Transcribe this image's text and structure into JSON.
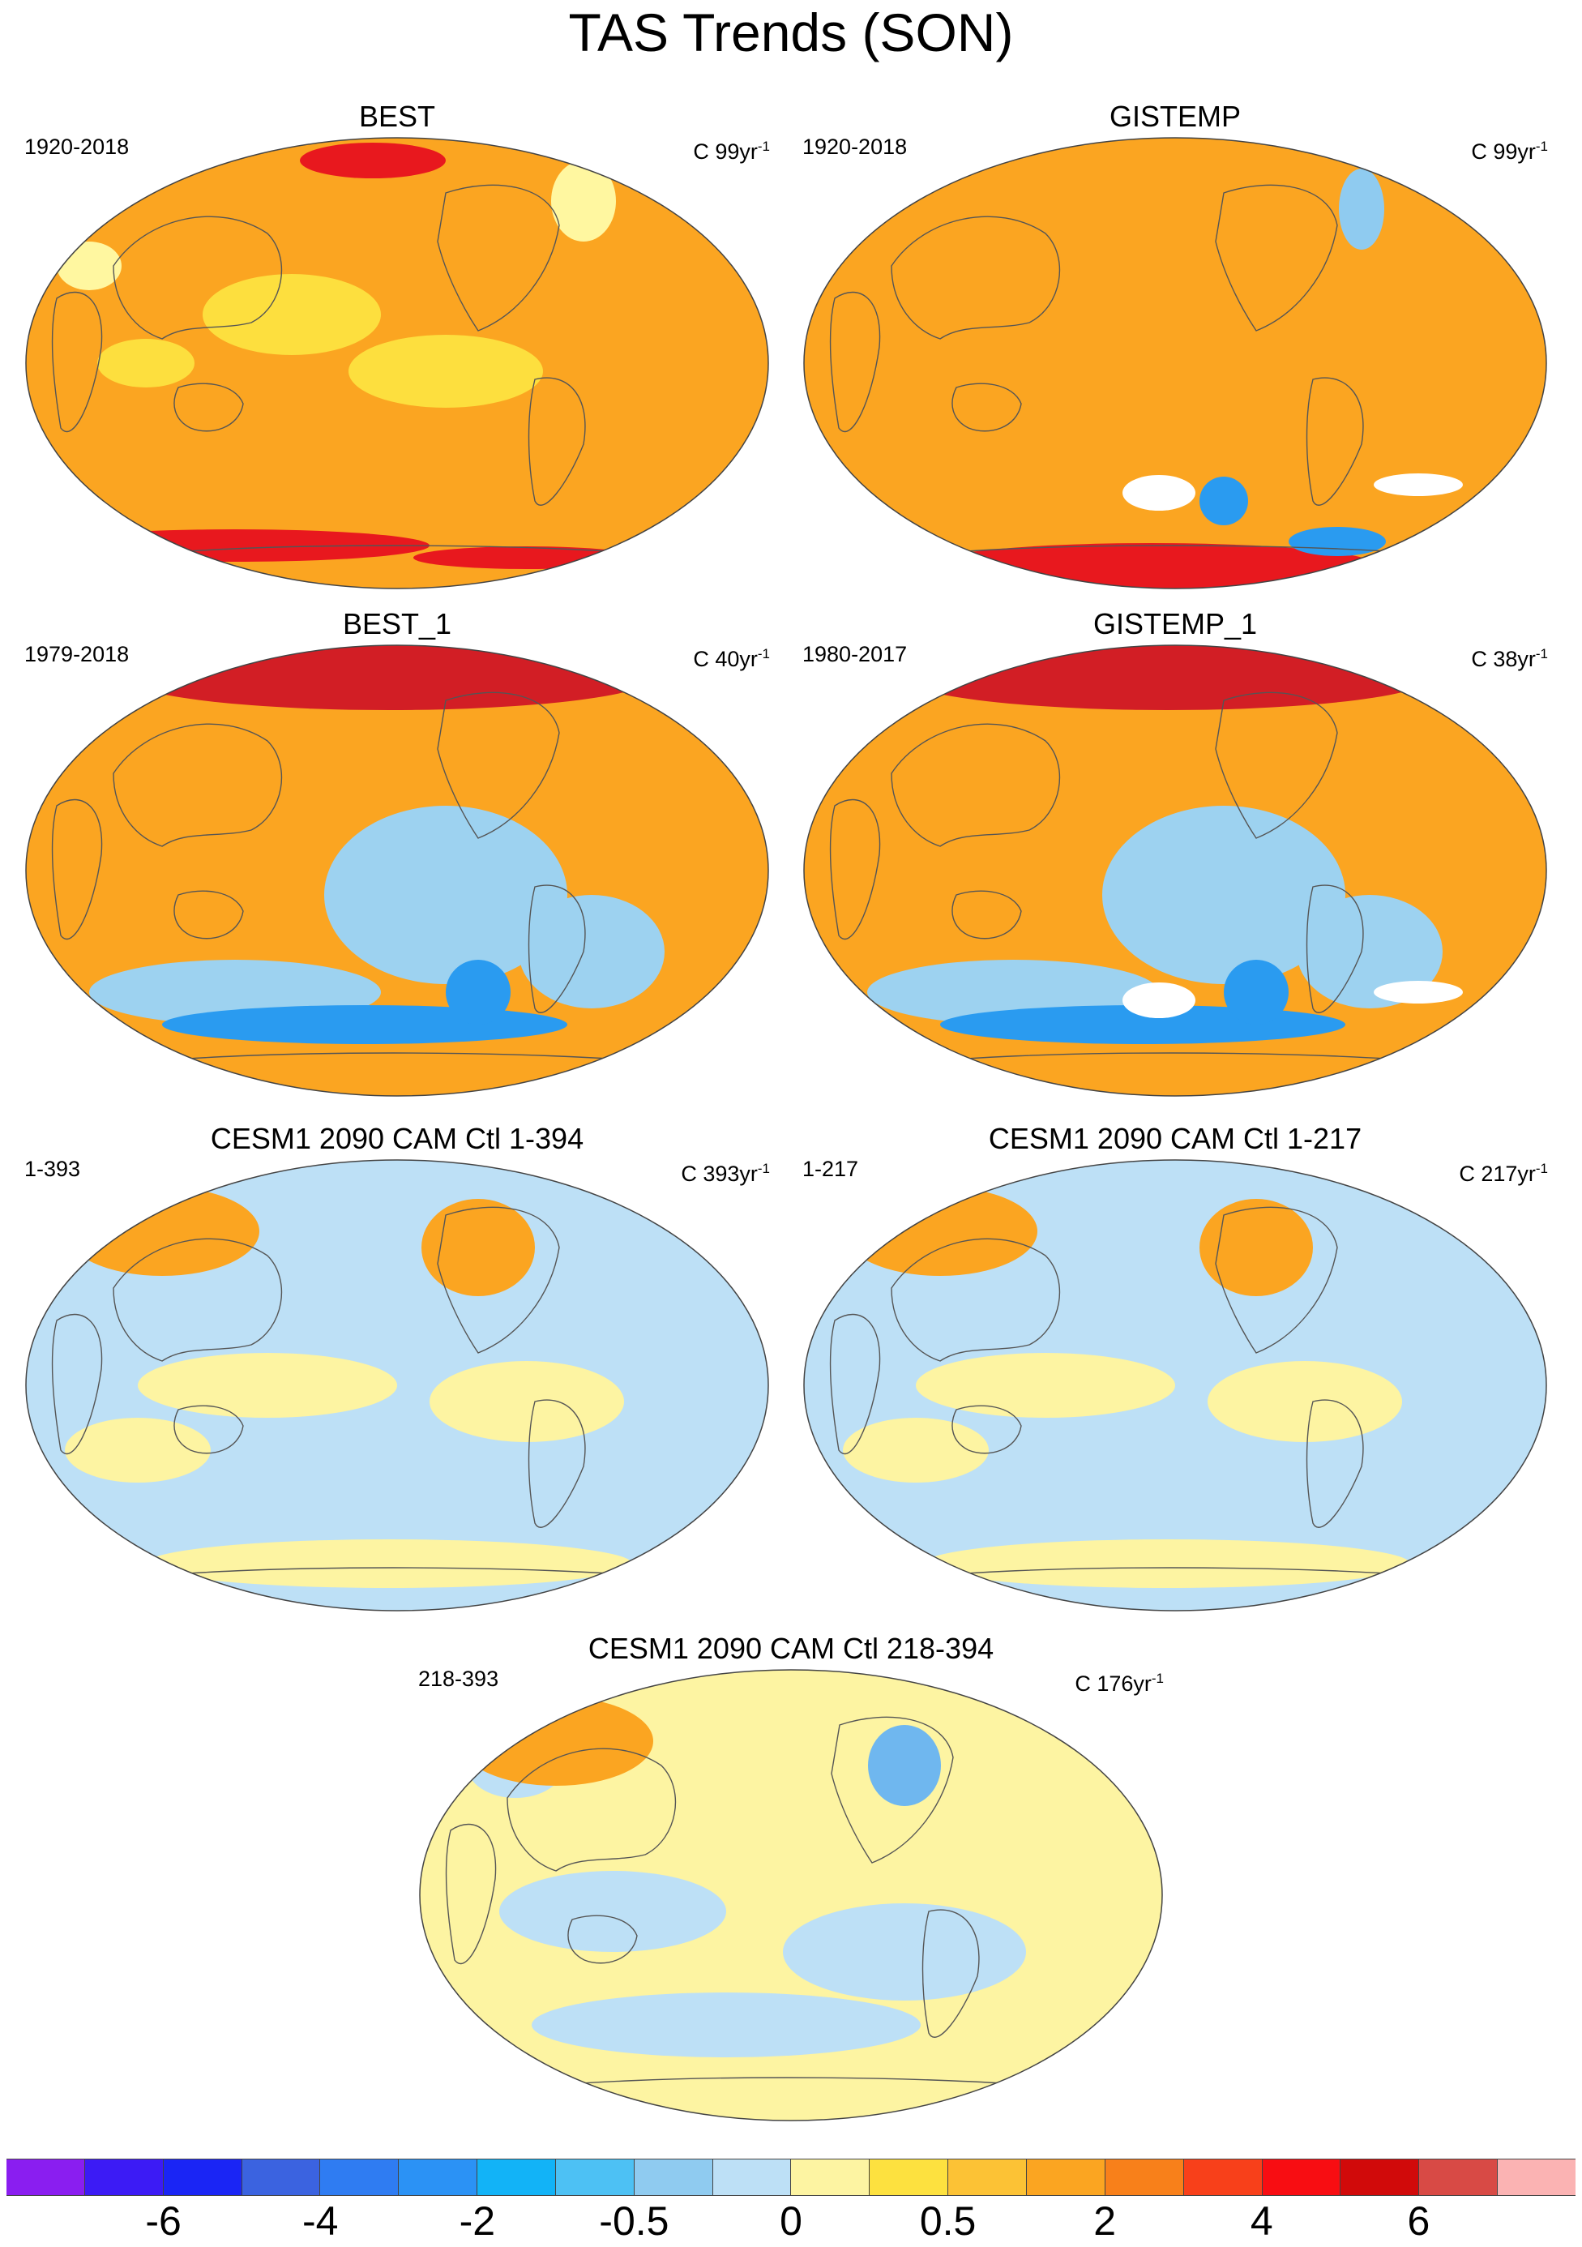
{
  "title": "TAS Trends (SON)",
  "panels": [
    {
      "title": "BEST",
      "period": "1920-2018",
      "units_prefix": "C 99yr",
      "units_exp": "-1",
      "map": {
        "base": "#fba521",
        "features": [
          {
            "name": "arctic-warm-spot",
            "color": "#e8181e"
          },
          {
            "name": "southern-ocean-band",
            "color": "#e8181e"
          },
          {
            "name": "north-atlantic-pale",
            "color": "#fff7a0"
          },
          {
            "name": "tropical-pacific-yellow",
            "color": "#fddf3e"
          }
        ]
      }
    },
    {
      "title": "GISTEMP",
      "period": "1920-2018",
      "units_prefix": "C 99yr",
      "units_exp": "-1",
      "map": {
        "base": "#fba521",
        "features": [
          {
            "name": "antarctic-red",
            "color": "#e8181e"
          },
          {
            "name": "greenland-cool",
            "color": "#8fcbf0"
          },
          {
            "name": "weddell-blue",
            "color": "#2a9bf0"
          },
          {
            "name": "missing-data",
            "color": "#ffffff"
          }
        ]
      }
    },
    {
      "title": "BEST_1",
      "period": "1979-2018",
      "units_prefix": "C 40yr",
      "units_exp": "-1",
      "map": {
        "base": "#fba521",
        "features": [
          {
            "name": "arctic-amplification",
            "color": "#d21e25"
          },
          {
            "name": "east-pacific-cooling",
            "color": "#9dd2f0"
          },
          {
            "name": "southern-ocean-cooling",
            "color": "#2a9bf0"
          }
        ]
      }
    },
    {
      "title": "GISTEMP_1",
      "period": "1980-2017",
      "units_prefix": "C 38yr",
      "units_exp": "-1",
      "map": {
        "base": "#fba521",
        "features": [
          {
            "name": "arctic-amplification",
            "color": "#d21e25"
          },
          {
            "name": "east-pacific-cooling",
            "color": "#9dd2f0"
          },
          {
            "name": "southern-ocean-cooling",
            "color": "#2a9bf0"
          },
          {
            "name": "missing-data",
            "color": "#ffffff"
          }
        ]
      }
    },
    {
      "title": "CESM1 2090 CAM Ctl 1-394",
      "period": "1-393",
      "units_prefix": "C 393yr",
      "units_exp": "-1",
      "map": {
        "base": "#bde0f6",
        "features": [
          {
            "name": "neutral-warm",
            "color": "#fdf4a2"
          },
          {
            "name": "eurasia-warm",
            "color": "#fba521"
          },
          {
            "name": "north-america-warm",
            "color": "#fba521"
          }
        ]
      }
    },
    {
      "title": "CESM1 2090 CAM Ctl 1-217",
      "period": "1-217",
      "units_prefix": "C 217yr",
      "units_exp": "-1",
      "map": {
        "base": "#bde0f6",
        "features": [
          {
            "name": "neutral-warm",
            "color": "#fdf4a2"
          },
          {
            "name": "eurasia-warm",
            "color": "#fba521"
          },
          {
            "name": "north-america-warm",
            "color": "#fba521"
          }
        ]
      }
    },
    {
      "title": "CESM1 2090 CAM Ctl 218-394",
      "period": "218-393",
      "units_prefix": "C 176yr",
      "units_exp": "-1",
      "map": {
        "base": "#fdf4a2",
        "features": [
          {
            "name": "neutral-cool",
            "color": "#bde0f6"
          },
          {
            "name": "eurasia-warm",
            "color": "#fba521"
          },
          {
            "name": "north-america-cool",
            "color": "#6fb7ef"
          }
        ]
      }
    }
  ],
  "colorbar": {
    "colors": [
      "#8a1ef0",
      "#3c1bf5",
      "#1a25f5",
      "#3b63e0",
      "#2f7cf2",
      "#2b92f5",
      "#12b3f7",
      "#4dc1f4",
      "#8fcbf0",
      "#bde0f6",
      "#fdf4a2",
      "#fde13f",
      "#fcc235",
      "#fba521",
      "#f8801a",
      "#f8401a",
      "#f80d12",
      "#d10a0a",
      "#d84a45",
      "#fbb3b3"
    ],
    "labels": [
      "-6",
      "-4",
      "-2",
      "-0.5",
      "0",
      "0.5",
      "2",
      "4",
      "6"
    ]
  }
}
